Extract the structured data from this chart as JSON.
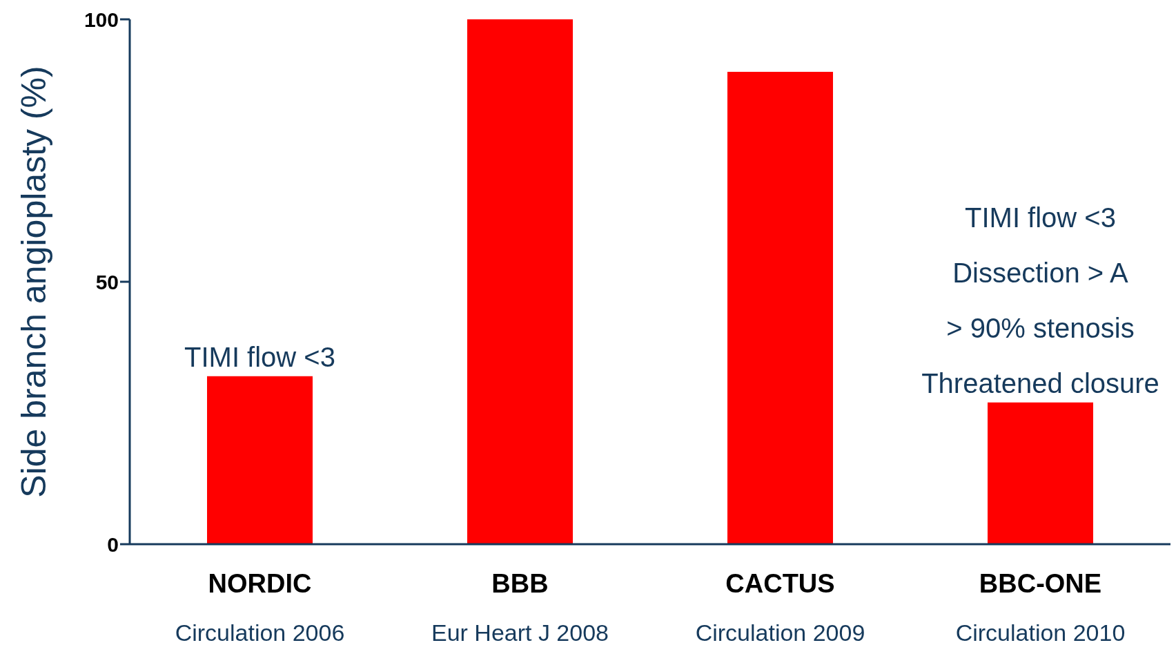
{
  "chart_data": {
    "type": "bar",
    "ylabel": "Side branch angioplasty (%)",
    "categories": [
      "NORDIC\nCirculation 2006",
      "BBB\nEur Heart J 2008",
      "CACTUS\nCirculation 2009",
      "BBC-ONE\nCirculation 2010"
    ],
    "values": [
      32,
      100,
      90,
      27
    ],
    "color": "#ff0000",
    "ylim": [
      0,
      100
    ],
    "yticks": [
      0,
      50,
      100
    ],
    "grid": false,
    "annotations": [
      {
        "text": "TIMI flow <3",
        "x": "NORDIC\nCirculation 2006",
        "y": 32
      },
      {
        "text": "TIMI flow <3\nDissection > A\n> 90% stenosis\nThreatened closure",
        "x": "BBC-ONE\nCirculation 2010",
        "y": 27
      }
    ]
  }
}
